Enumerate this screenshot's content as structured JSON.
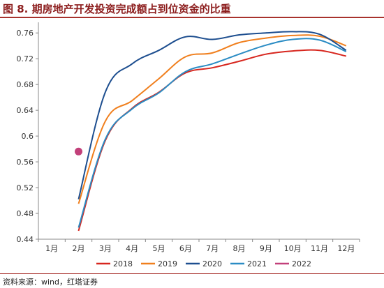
{
  "figure": {
    "title": "图 8. 期房地产开发投资完成额占到位资金的比重",
    "source": "资料来源：wind，红塔证券"
  },
  "chart_data": {
    "type": "line",
    "title": "",
    "xlabel": "",
    "ylabel": "",
    "categories": [
      "1月",
      "2月",
      "3月",
      "4月",
      "5月",
      "6月",
      "7月",
      "8月",
      "9月",
      "10月",
      "11月",
      "12月"
    ],
    "yticks": [
      "0.44",
      "0.48",
      "0.52",
      "0.56",
      "0.6",
      "0.64",
      "0.68",
      "0.72",
      "0.76"
    ],
    "ylim": [
      0.44,
      0.77
    ],
    "grid": false,
    "legend_position": "bottom",
    "series": [
      {
        "name": "2018",
        "color": "#d7261e",
        "values": [
          null,
          0.453,
          0.593,
          0.643,
          0.668,
          0.698,
          0.706,
          0.716,
          0.727,
          0.732,
          0.733,
          0.724
        ]
      },
      {
        "name": "2019",
        "color": "#f07f1d",
        "values": [
          null,
          0.495,
          0.623,
          0.655,
          0.689,
          0.723,
          0.729,
          0.745,
          0.752,
          0.756,
          0.755,
          0.74
        ]
      },
      {
        "name": "2020",
        "color": "#1d4e8f",
        "values": [
          null,
          0.502,
          0.668,
          0.712,
          0.733,
          0.754,
          0.75,
          0.757,
          0.76,
          0.762,
          0.758,
          0.733
        ]
      },
      {
        "name": "2021",
        "color": "#2b8cc4",
        "values": [
          null,
          0.458,
          0.595,
          0.642,
          0.667,
          0.7,
          0.712,
          0.727,
          0.741,
          0.75,
          0.749,
          0.731
        ]
      },
      {
        "name": "2022",
        "color": "#c2407a",
        "values": [
          null,
          0.576,
          null,
          null,
          null,
          null,
          null,
          null,
          null,
          null,
          null,
          null
        ]
      }
    ]
  }
}
